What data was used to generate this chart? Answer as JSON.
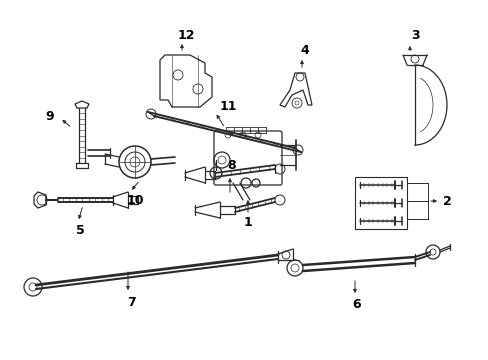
{
  "bg_color": "#ffffff",
  "line_color": "#2a2a2a",
  "label_color": "#000000",
  "fig_width": 4.89,
  "fig_height": 3.6,
  "dpi": 100,
  "lw": 0.9,
  "fontsize": 9
}
